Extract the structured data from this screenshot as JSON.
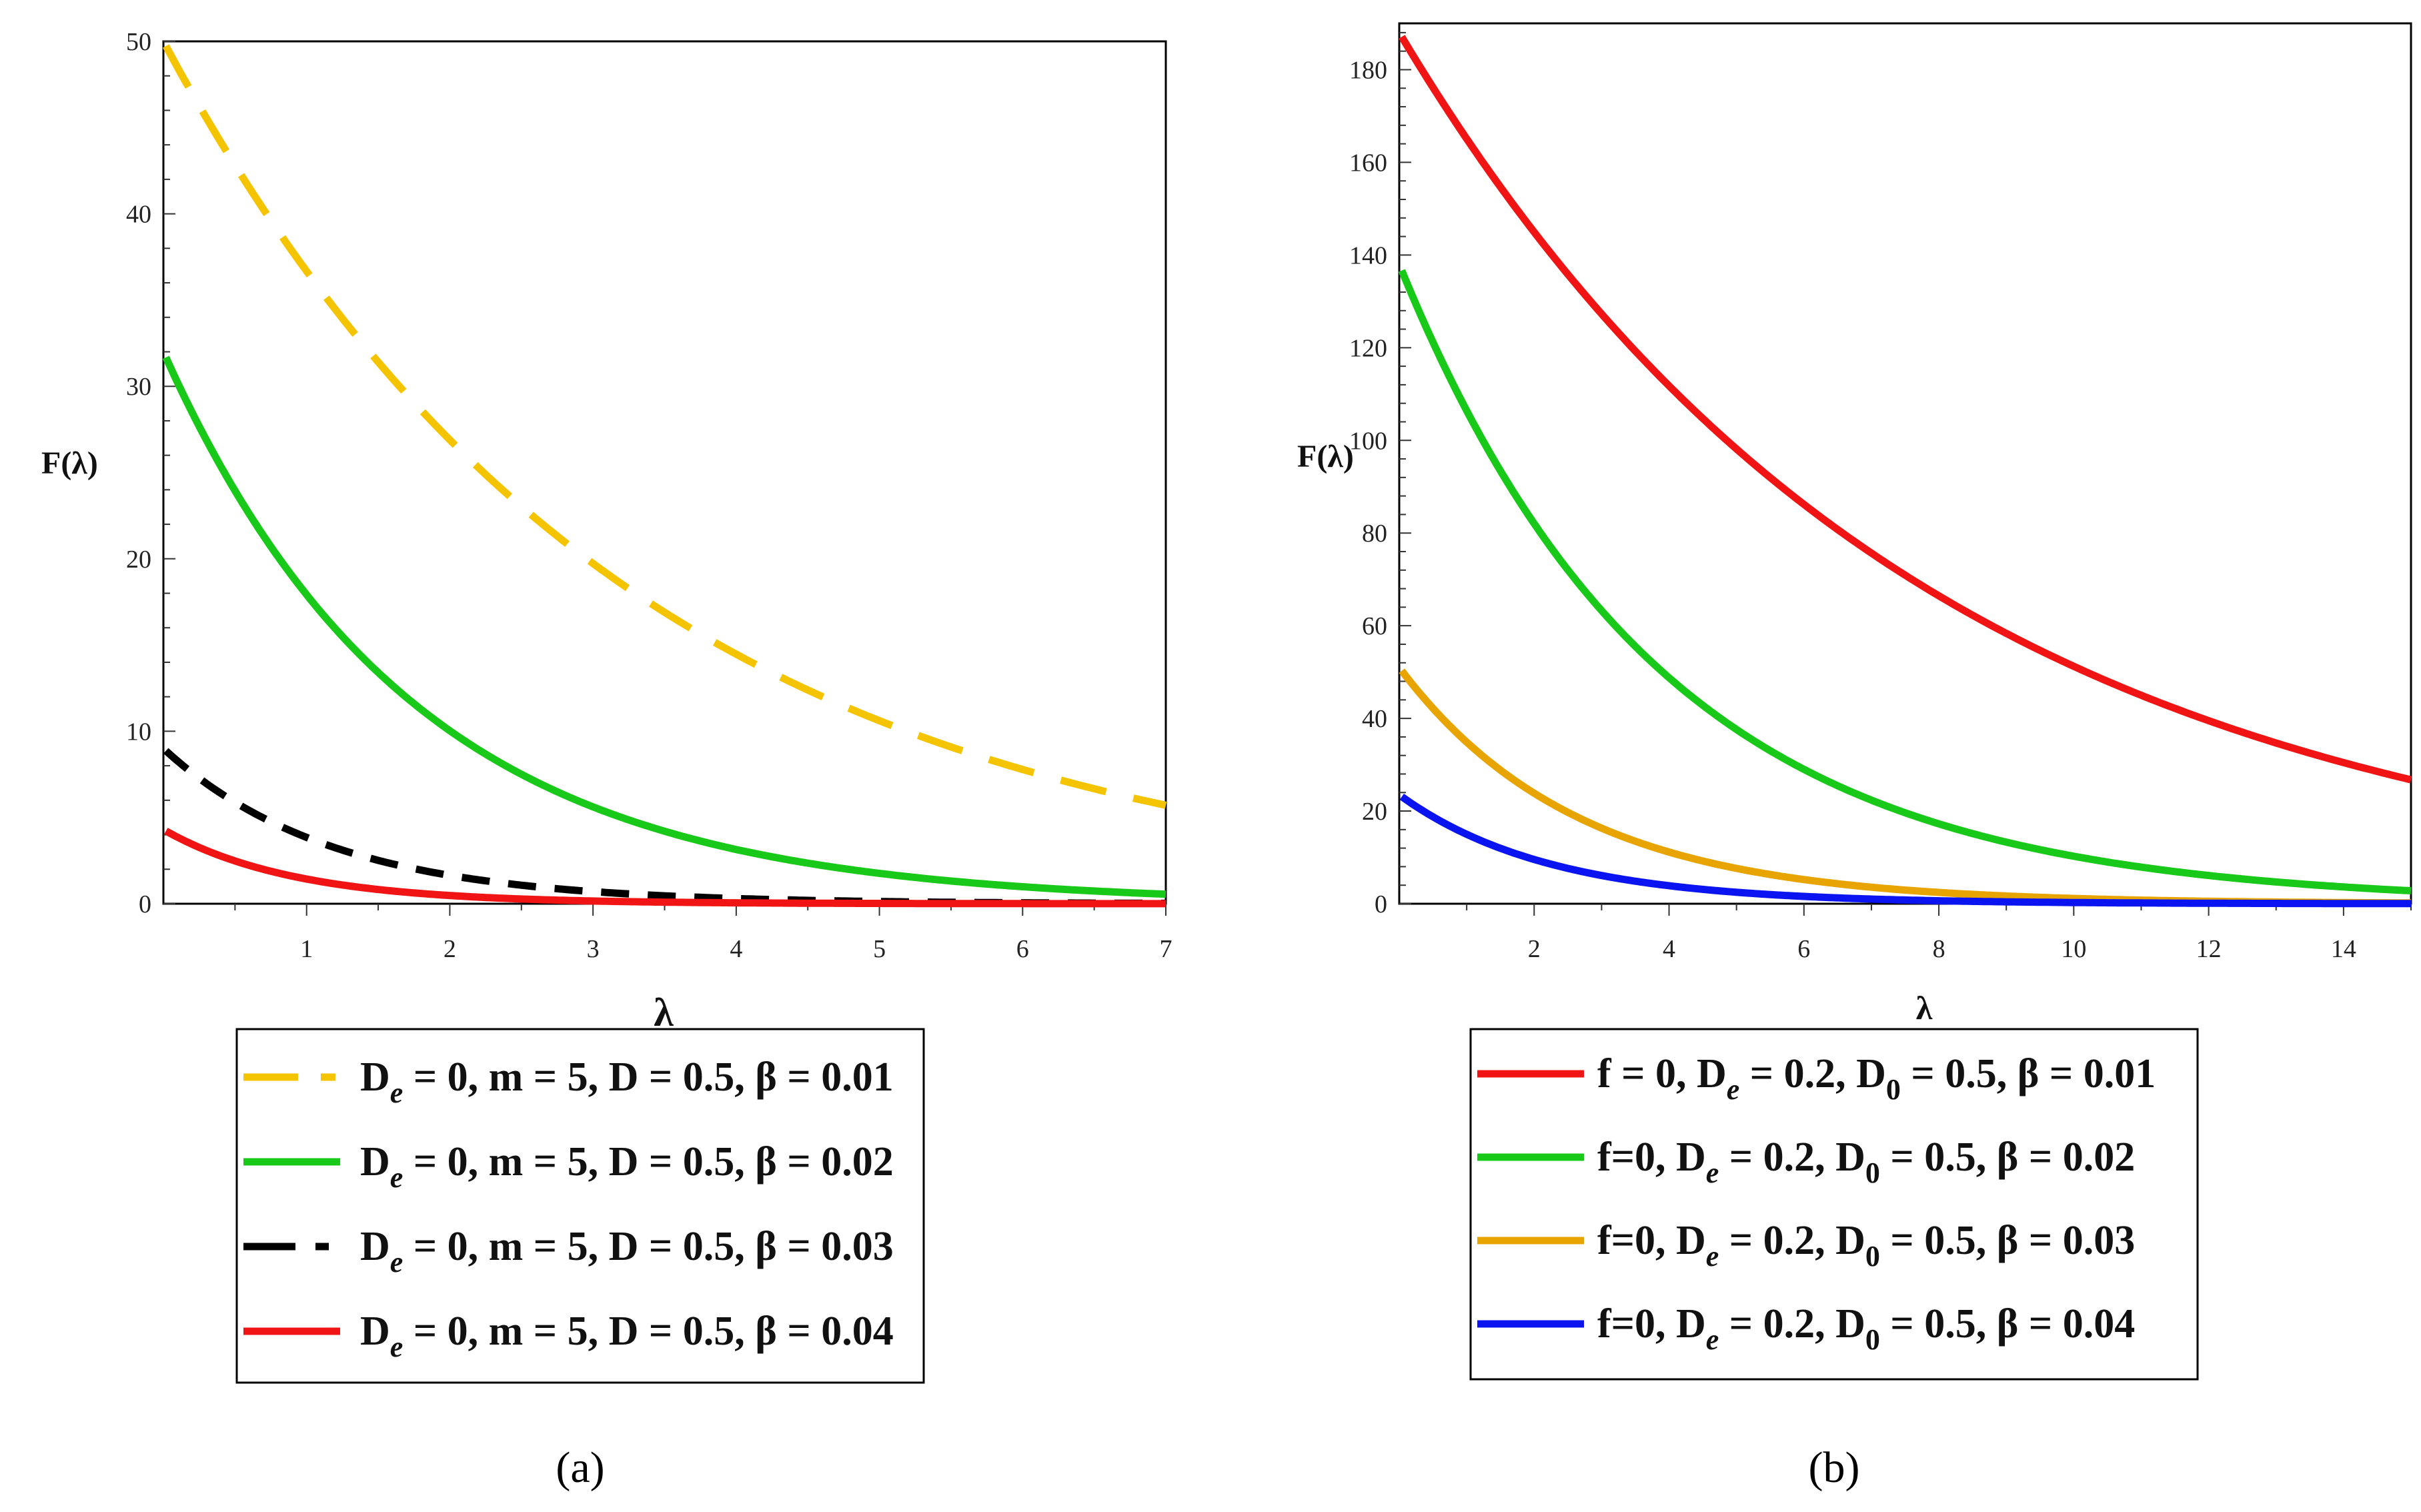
{
  "chart_data": [
    {
      "type": "line",
      "panel_label": "(a)",
      "xlabel": "λ",
      "ylabel": "F(λ)",
      "xlim": [
        0,
        7
      ],
      "ylim": [
        0,
        50
      ],
      "xticks": [
        1,
        2,
        3,
        4,
        5,
        6,
        7
      ],
      "yticks": [
        0,
        10,
        20,
        30,
        40,
        50
      ],
      "series": [
        {
          "name": "De = 0, m = 5, D = 0.5, β = 0.01",
          "legend": {
            "D": "D",
            "sub": "e",
            "rest": " = 0, m = 5, D = 0.5, β = 0.01"
          },
          "color": "#F5C400",
          "style": "dashed-long",
          "a": 50,
          "k": 0.31
        },
        {
          "name": "De = 0, m = 5, D = 0.5, β = 0.02",
          "legend": {
            "D": "D",
            "sub": "e",
            "rest": " = 0, m = 5, D = 0.5, β = 0.02"
          },
          "color": "#19C919",
          "style": "solid",
          "a": 32,
          "k": 0.58
        },
        {
          "name": "De = 0, m = 5, D = 0.5, β = 0.03",
          "legend": {
            "D": "D",
            "sub": "e",
            "rest": " = 0, m = 5, D = 0.5, β = 0.03"
          },
          "color": "#000000",
          "style": "dashed-short",
          "a": 9,
          "k": 0.85
        },
        {
          "name": "De = 0, m = 5, D = 0.5, β = 0.04",
          "legend": {
            "D": "D",
            "sub": "e",
            "rest": " = 0, m = 5, D = 0.5, β = 0.04"
          },
          "color": "#F01414",
          "style": "solid",
          "a": 4.3,
          "k": 1.1
        }
      ]
    },
    {
      "type": "line",
      "panel_label": "(b)",
      "xlabel": "λ",
      "ylabel": "F(λ)",
      "xlim": [
        0,
        15
      ],
      "ylim": [
        0,
        190
      ],
      "xticks": [
        2,
        4,
        6,
        8,
        10,
        12,
        14
      ],
      "yticks": [
        0,
        20,
        40,
        60,
        80,
        100,
        120,
        140,
        160,
        180
      ],
      "series": [
        {
          "name": "f = 0, De = 0.2, D0 = 0.5, β = 0.01",
          "legend": {
            "pre": "f = 0, ",
            "D": "D",
            "sub": "e",
            "mid": " = 0.2,  D",
            "sub2": "0",
            "rest": " = 0.5, β = 0.01"
          },
          "color": "#F01414",
          "style": "solid",
          "a": 188,
          "k": 0.13
        },
        {
          "name": "f=0, De = 0.2, D0 = 0.5, β = 0.02",
          "legend": {
            "pre": "f=0, ",
            "D": "D",
            "sub": "e",
            "mid": " = 0.2,  D",
            "sub2": "0",
            "rest": " = 0.5, β = 0.02"
          },
          "color": "#19C919",
          "style": "solid",
          "a": 138,
          "k": 0.26
        },
        {
          "name": "f=0, De = 0.2, D0 = 0.5, β = 0.03",
          "legend": {
            "pre": "f=0, ",
            "D": "D",
            "sub": "e",
            "mid": " = 0.2,  D",
            "sub2": "0",
            "rest": " = 0.5, β = 0.03"
          },
          "color": "#E8A400",
          "style": "solid",
          "a": 51,
          "k": 0.38
        },
        {
          "name": "f=0, De = 0.2, D0 = 0.5, β = 0.04",
          "legend": {
            "pre": "f=0, ",
            "D": "D",
            "sub": "e",
            "mid": " = 0.2,  D",
            "sub2": "0",
            "rest": " = 0.5, β = 0.04"
          },
          "color": "#0A14F0",
          "style": "solid",
          "a": 23.5,
          "k": 0.45
        }
      ]
    }
  ]
}
